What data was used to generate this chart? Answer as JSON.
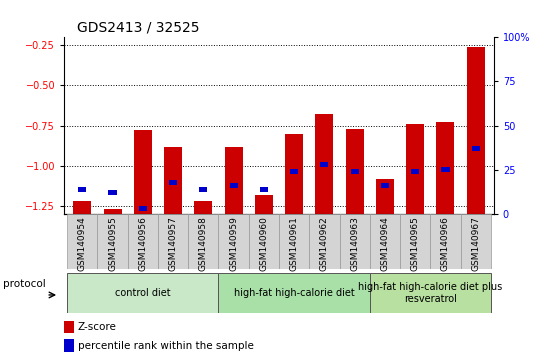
{
  "title": "GDS2413 / 32525",
  "samples": [
    "GSM140954",
    "GSM140955",
    "GSM140956",
    "GSM140957",
    "GSM140958",
    "GSM140959",
    "GSM140960",
    "GSM140961",
    "GSM140962",
    "GSM140963",
    "GSM140964",
    "GSM140965",
    "GSM140966",
    "GSM140967"
  ],
  "zscore": [
    -1.22,
    -1.27,
    -0.78,
    -0.88,
    -1.22,
    -0.88,
    -1.18,
    -0.8,
    -0.68,
    -0.77,
    -1.08,
    -0.74,
    -0.73,
    -0.26
  ],
  "percentile": [
    14,
    12,
    3,
    18,
    14,
    16,
    14,
    24,
    28,
    24,
    16,
    24,
    25,
    37
  ],
  "bar_color": "#cc0000",
  "pct_color": "#0000cc",
  "ymin": -1.3,
  "ymax": -0.2,
  "yticks": [
    -1.25,
    -1.0,
    -0.75,
    -0.5,
    -0.25
  ],
  "right_yticks": [
    0,
    25,
    50,
    75,
    100
  ],
  "grid_color": "black",
  "protocol_groups": [
    {
      "label": "control diet",
      "start": 0,
      "end": 4,
      "color": "#c8e8c8"
    },
    {
      "label": "high-fat high-calorie diet",
      "start": 5,
      "end": 9,
      "color": "#a8e0a8"
    },
    {
      "label": "high-fat high-calorie diet plus\nresveratrol",
      "start": 10,
      "end": 13,
      "color": "#b8e0a0"
    }
  ],
  "protocol_label": "protocol",
  "legend_zscore": "Z-score",
  "legend_pct": "percentile rank within the sample",
  "title_fontsize": 10,
  "tick_fontsize": 7,
  "label_fontsize": 8
}
